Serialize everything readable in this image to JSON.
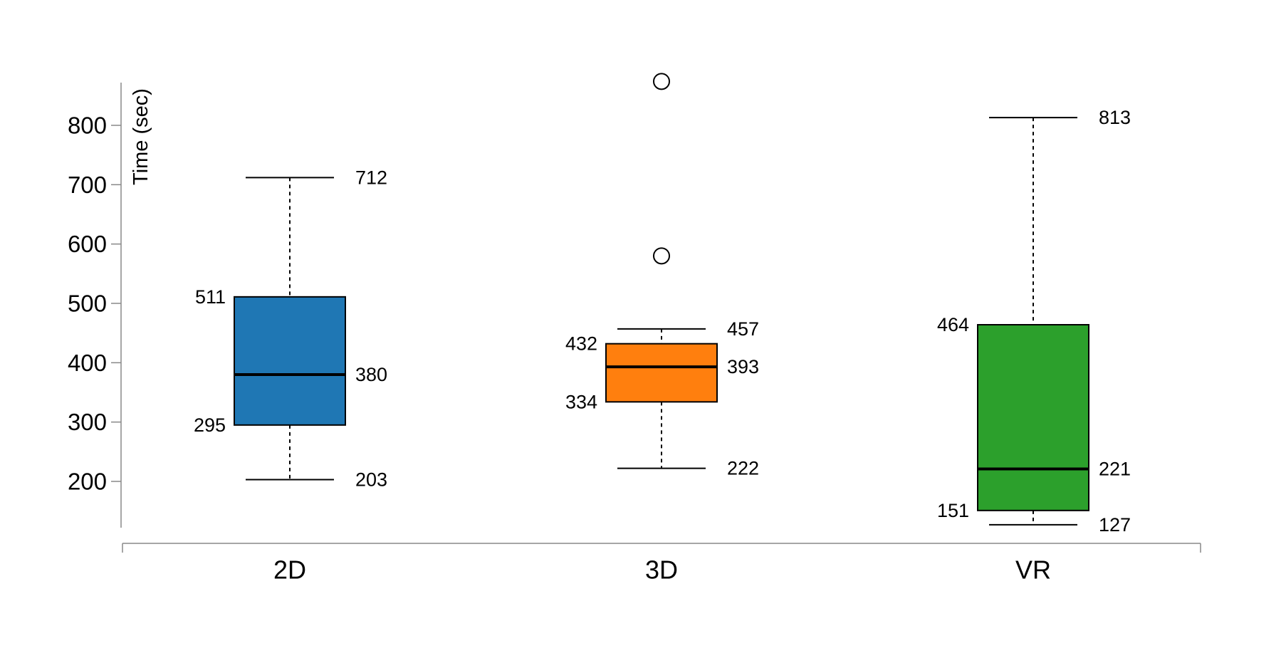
{
  "chart_data": {
    "type": "box",
    "ylabel": "Time (sec)",
    "xlabel": "",
    "ylim": [
      122,
      872
    ],
    "yticks": [
      200,
      300,
      400,
      500,
      600,
      700,
      800
    ],
    "grid": false,
    "legend": "none",
    "categories": [
      "2D",
      "3D",
      "VR"
    ],
    "series": [
      {
        "category": "2D",
        "color": "#1f77b4",
        "min": 203,
        "q1": 295,
        "median": 380,
        "q3": 511,
        "max": 712,
        "outliers": [],
        "labels": {
          "min": "203",
          "q1": "295",
          "median": "380",
          "q3": "511",
          "max": "712"
        }
      },
      {
        "category": "3D",
        "color": "#ff7f0e",
        "min": 222,
        "q1": 334,
        "median": 393,
        "q3": 432,
        "max": 457,
        "outliers": [
          580,
          874
        ],
        "labels": {
          "min": "222",
          "q1": "334",
          "median": "393",
          "q3": "432",
          "max": "457"
        }
      },
      {
        "category": "VR",
        "color": "#2ca02c",
        "min": 127,
        "q1": 151,
        "median": 221,
        "q3": 464,
        "max": 813,
        "outliers": [],
        "labels": {
          "min": "127",
          "q1": "151",
          "median": "221",
          "q3": "464",
          "max": "813"
        }
      }
    ]
  }
}
